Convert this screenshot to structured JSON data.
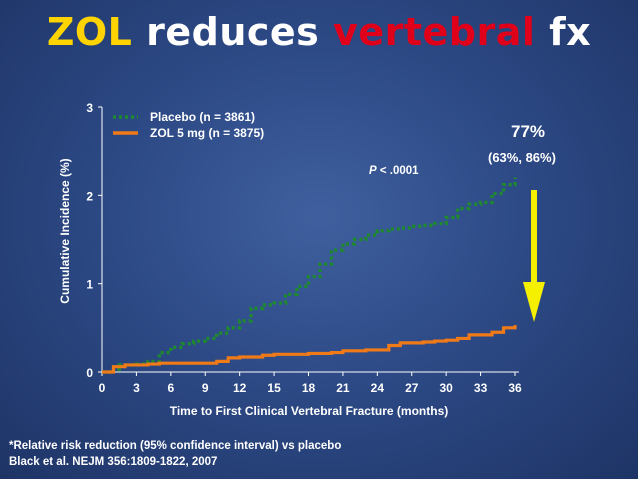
{
  "title": {
    "part1": "ZOL",
    "part2": " reduces ",
    "part3": "vertebral",
    "part4": " fx"
  },
  "colors": {
    "background": "#2d4a86",
    "title_accent": "#ffd400",
    "title_red": "#e0001a",
    "placebo": "#1e8a2e",
    "zol": "#f07a18",
    "arrow": "#f4f000"
  },
  "chart_data": {
    "type": "line",
    "xlabel": "Time to First Clinical Vertebral Fracture (months)",
    "ylabel": "Cumulative Incidence (%)",
    "xlim": [
      0,
      36
    ],
    "ylim": [
      0,
      3
    ],
    "xticks": [
      0,
      3,
      6,
      9,
      12,
      15,
      18,
      21,
      24,
      27,
      30,
      33,
      36
    ],
    "yticks": [
      0,
      1,
      2,
      3
    ],
    "grid": false,
    "legend_position": "top-left",
    "series": [
      {
        "name": "Placebo (n = 3861)",
        "style": "dotted",
        "color": "#1e8a2e",
        "x": [
          0,
          1,
          1.5,
          3,
          4,
          5,
          6,
          7,
          8,
          9,
          10,
          11,
          12,
          13,
          14,
          15,
          16,
          17,
          18,
          19,
          20,
          21,
          22,
          23,
          24,
          25,
          26,
          27,
          28,
          29,
          30,
          31,
          32,
          33,
          34,
          35,
          36
        ],
        "y": [
          0,
          0.03,
          0.08,
          0.09,
          0.12,
          0.22,
          0.28,
          0.32,
          0.35,
          0.38,
          0.44,
          0.5,
          0.58,
          0.72,
          0.76,
          0.78,
          0.88,
          0.97,
          1.08,
          1.22,
          1.38,
          1.45,
          1.5,
          1.55,
          1.6,
          1.62,
          1.63,
          1.65,
          1.66,
          1.68,
          1.75,
          1.85,
          1.9,
          1.92,
          2.02,
          2.12,
          2.2
        ]
      },
      {
        "name": "ZOL 5 mg (n = 3875)",
        "style": "solid",
        "color": "#f07a18",
        "x": [
          0,
          1,
          2,
          3,
          4,
          5,
          6,
          7,
          8,
          9,
          10,
          11,
          12,
          13,
          14,
          15,
          16,
          17,
          18,
          19,
          20,
          21,
          22,
          23,
          24,
          25,
          26,
          27,
          28,
          29,
          30,
          31,
          32,
          33,
          34,
          35,
          36
        ],
        "y": [
          0,
          0.06,
          0.08,
          0.08,
          0.09,
          0.1,
          0.1,
          0.1,
          0.1,
          0.1,
          0.12,
          0.16,
          0.17,
          0.17,
          0.19,
          0.2,
          0.2,
          0.2,
          0.21,
          0.21,
          0.22,
          0.24,
          0.24,
          0.25,
          0.25,
          0.3,
          0.33,
          0.33,
          0.34,
          0.35,
          0.36,
          0.38,
          0.42,
          0.42,
          0.45,
          0.5,
          0.53
        ]
      }
    ],
    "annotations": {
      "rrr": "77%",
      "ci": "(63%, 86%)",
      "p_label": "P",
      "p_value": " < .0001"
    }
  },
  "footnotes": [
    "*Relative risk reduction (95% confidence interval) vs placebo",
    "Black et al. NEJM 356:1809-1822, 2007"
  ]
}
